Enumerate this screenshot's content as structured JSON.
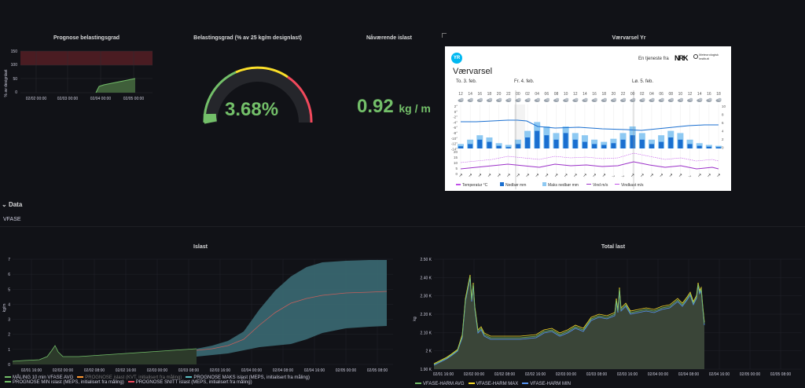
{
  "panels": {
    "prognose_title": "Prognose belastingsgrad",
    "belastning_title": "Belastingsgrad (% av 25 kg/m designlast)",
    "naavaerende_title": "Nåværende islast",
    "vaervarsel_title": "Værvarsel Yr",
    "islast_title": "Islast",
    "totallast_title": "Total last"
  },
  "prognose": {
    "ylabel": "% av designlast",
    "yticks": [
      "150",
      "100",
      "50",
      "0"
    ],
    "xticks": [
      "02/02 00:00",
      "02/03 00:00",
      "02/04 00:00",
      "02/05 00:00"
    ]
  },
  "gauge": {
    "value": "3.68%",
    "fraction": 0.0368
  },
  "current": {
    "value": "0.92",
    "unit": "kg / m"
  },
  "row": {
    "label": "Data",
    "subtitle": "VFASE"
  },
  "yr": {
    "service_text": "En tjeneste fra",
    "nrk": "NRK",
    "met1": "Meteorologisk",
    "met2": "institutt",
    "logo": "YR",
    "title": "Værvarsel",
    "days": [
      "To. 3. feb.",
      "Fr. 4. feb.",
      "Lø. 5. feb."
    ],
    "hours": [
      "12",
      "14",
      "16",
      "18",
      "20",
      "22",
      "00",
      "02",
      "04",
      "06",
      "08",
      "10",
      "12",
      "14",
      "16",
      "18",
      "20",
      "22",
      "00",
      "02",
      "04",
      "06",
      "08",
      "10",
      "12",
      "14",
      "16",
      "18"
    ],
    "temp_ticks": [
      "2°",
      "0°",
      "-2°",
      "-4°",
      "-6°",
      "-8°",
      "-10°",
      "-12°",
      "-14°"
    ],
    "precip_ticks": [
      "10",
      "8",
      "6",
      "4",
      "2",
      "0"
    ],
    "wind_ticks": [
      "20",
      "15",
      "10",
      "5",
      "0"
    ],
    "legend": [
      "Temperatur °C",
      "Nedbør mm",
      "Maks nedbør mm",
      "Vind m/s",
      "Vindkast m/s"
    ]
  },
  "islast": {
    "ylabel": "kg/m",
    "yticks": [
      "7",
      "6",
      "5",
      "4",
      "3",
      "2",
      "1",
      "0"
    ],
    "xticks": [
      "02/01 16:00",
      "02/02 00:00",
      "02/02 08:00",
      "02/02 16:00",
      "02/03 00:00",
      "02/03 08:00",
      "02/03 16:00",
      "02/04 00:00",
      "02/04 08:00",
      "02/04 16:00",
      "02/05 00:00",
      "02/05 08:00"
    ],
    "legend": [
      {
        "label": "MÅLING 10 min VFASE AVG",
        "color": "#73bf69"
      },
      {
        "label": "PROGNOSE islast (KVT, initialisert fra måling)",
        "color": "#a0a0a0"
      },
      {
        "label": "PROGNOSE MAKS islast (MEPS, initialisert fra måling)",
        "color": "#5794f2"
      },
      {
        "label": "PROGNOSE MIN islast (MEPS, initialisert fra måling)",
        "color": "#73bf69"
      },
      {
        "label": "PROGNOSE SNITT islast (MEPS, initialisert fra måling)",
        "color": "#f2495c"
      }
    ]
  },
  "totallast": {
    "ylabel": "kg",
    "yticks": [
      "2.50 K",
      "2.40 K",
      "2.30 K",
      "2.20 K",
      "2.10 K",
      "2 K",
      "1.90 K"
    ],
    "xticks": [
      "02/01 16:00",
      "02/02 00:00",
      "02/02 08:00",
      "02/02 16:00",
      "02/03 00:00",
      "02/03 08:00",
      "02/03 16:00",
      "02/04 00:00",
      "02/04 08:00",
      "02/04 16:00",
      "02/05 00:00",
      "02/05 08:00"
    ],
    "legend": [
      {
        "label": "VFASE-HARM AVG",
        "color": "#73bf69"
      },
      {
        "label": "VFASE-HARM MAX",
        "color": "#fade2a"
      },
      {
        "label": "VFASE-HARM MIN",
        "color": "#5794f2"
      }
    ]
  },
  "colors": {
    "green": "#73bf69",
    "yellow": "#fade2a",
    "red": "#f2495c",
    "teal": "#4e8c8f",
    "bg": "#111217"
  }
}
